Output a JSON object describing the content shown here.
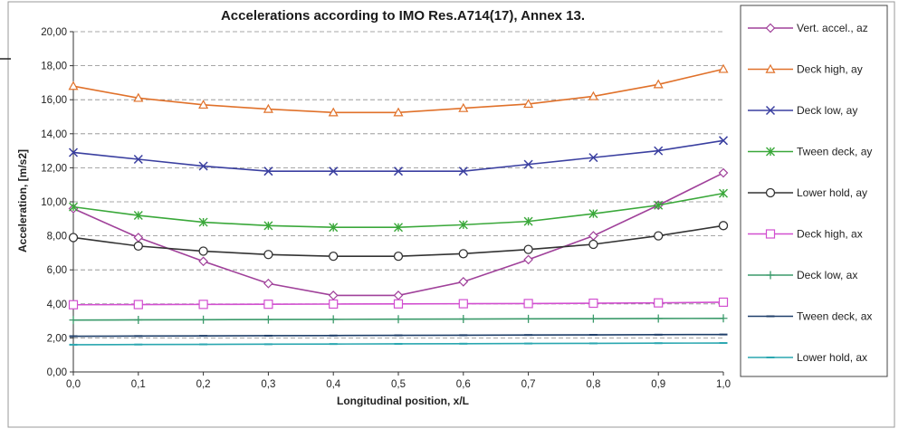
{
  "chart_data": {
    "type": "line",
    "title": "Accelerations according to IMO Res.A714(17), Annex 13.",
    "xlabel": "Longitudinal position,  x/L",
    "ylabel": "Acceleration, [m/s2]",
    "x": [
      0.0,
      0.1,
      0.2,
      0.3,
      0.4,
      0.5,
      0.6,
      0.7,
      0.8,
      0.9,
      1.0
    ],
    "x_tick_labels": [
      "0,0",
      "0,1",
      "0,2",
      "0,3",
      "0,4",
      "0,5",
      "0,6",
      "0,7",
      "0,8",
      "0,9",
      "1,0"
    ],
    "xlim": [
      0,
      1
    ],
    "ylim": [
      0,
      20
    ],
    "y_ticks": [
      0,
      2,
      4,
      6,
      8,
      10,
      12,
      14,
      16,
      18,
      20
    ],
    "y_tick_labels": [
      "0,00",
      "2,00",
      "4,00",
      "6,00",
      "8,00",
      "10,00",
      "12,00",
      "14,00",
      "16,00",
      "18,00",
      "20,00"
    ],
    "grid": "horizontal dashed",
    "legend_position": "right",
    "series": [
      {
        "name": "Vert. accel., az",
        "color": "#a0419a",
        "marker": "diamond",
        "values": [
          9.6,
          7.9,
          6.5,
          5.2,
          4.5,
          4.5,
          5.3,
          6.6,
          8.0,
          9.8,
          11.7
        ]
      },
      {
        "name": "Deck high, ay",
        "color": "#e0712a",
        "marker": "triangle",
        "values": [
          16.8,
          16.1,
          15.7,
          15.45,
          15.25,
          15.25,
          15.5,
          15.75,
          16.2,
          16.9,
          17.8
        ]
      },
      {
        "name": "Deck low, ay",
        "color": "#3a3fa0",
        "marker": "x",
        "values": [
          12.9,
          12.5,
          12.1,
          11.8,
          11.8,
          11.8,
          11.8,
          12.2,
          12.6,
          13.0,
          13.6
        ]
      },
      {
        "name": "Tween deck, ay",
        "color": "#3aa83a",
        "marker": "asterisk",
        "values": [
          9.7,
          9.2,
          8.8,
          8.6,
          8.5,
          8.5,
          8.65,
          8.85,
          9.3,
          9.8,
          10.5
        ]
      },
      {
        "name": "Lower hold, ay",
        "color": "#333333",
        "marker": "circle",
        "values": [
          7.9,
          7.4,
          7.1,
          6.9,
          6.8,
          6.8,
          6.95,
          7.2,
          7.5,
          8.0,
          8.6
        ]
      },
      {
        "name": "Deck high, ax",
        "color": "#d24fd0",
        "marker": "square",
        "values": [
          3.95,
          3.96,
          3.97,
          3.98,
          3.99,
          4.0,
          4.01,
          4.02,
          4.04,
          4.06,
          4.1
        ]
      },
      {
        "name": "Deck low, ax",
        "color": "#3a9a6a",
        "marker": "plus",
        "values": [
          3.05,
          3.06,
          3.07,
          3.08,
          3.09,
          3.1,
          3.11,
          3.12,
          3.13,
          3.14,
          3.15
        ]
      },
      {
        "name": "Tween deck, ax",
        "color": "#1f3f6a",
        "marker": "dash",
        "values": [
          2.1,
          2.11,
          2.12,
          2.13,
          2.14,
          2.15,
          2.16,
          2.17,
          2.18,
          2.19,
          2.2
        ]
      },
      {
        "name": "Lower hold, ax",
        "color": "#2aa7b0",
        "marker": "dash",
        "values": [
          1.6,
          1.61,
          1.62,
          1.63,
          1.64,
          1.65,
          1.66,
          1.67,
          1.68,
          1.69,
          1.7
        ]
      }
    ]
  }
}
